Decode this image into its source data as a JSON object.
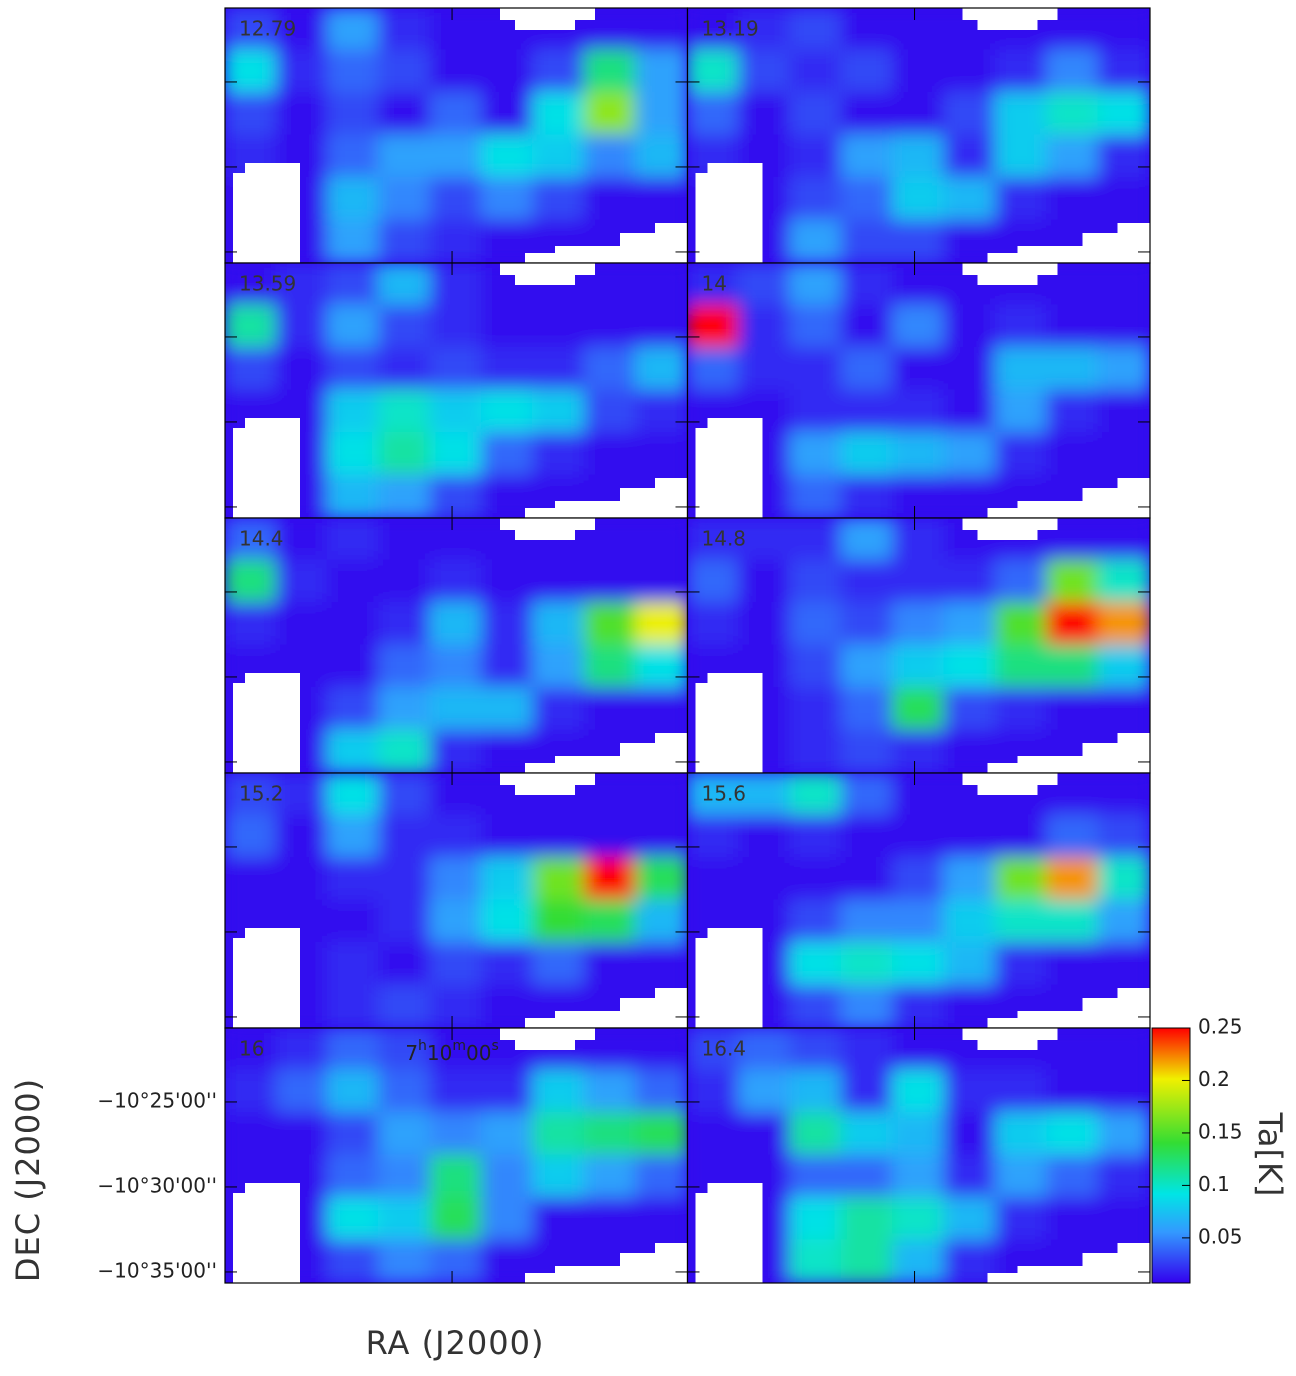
{
  "chart_data": {
    "type": "heatmap",
    "x_label": "RA (J2000)",
    "y_label": "DEC (J2000)",
    "xlim": [
      25854,
      25744
    ],
    "ylim": [
      -635.65,
      -620.65
    ],
    "xticks": [
      {
        "value": 25800,
        "label": "7h10m00s"
      }
    ],
    "yticks": [
      {
        "value": -625,
        "label": "−10°25'00''"
      },
      {
        "value": -630,
        "label": "−10°30'00''"
      },
      {
        "value": -635,
        "label": "−10°35'00''"
      }
    ],
    "colorbar": {
      "label": "Ta[K]",
      "lim": [
        0.007,
        0.25
      ],
      "ticks": [
        0.05,
        0.1,
        0.15,
        0.2,
        0.25
      ]
    },
    "panels": [
      {
        "label": "12.79",
        "values": [
          [
            0.03,
            0.01,
            0.06,
            0.02,
            0.01,
            0.01,
            0.01,
            0.01,
            0.01
          ],
          [
            0.09,
            0.02,
            0.04,
            0.03,
            0.01,
            0.01,
            0.03,
            0.12,
            0.06
          ],
          [
            0.03,
            0.01,
            0.03,
            0.01,
            0.04,
            0.01,
            0.09,
            0.17,
            0.06
          ],
          [
            0.02,
            0.01,
            0.04,
            0.06,
            0.06,
            0.09,
            0.08,
            0.05,
            0.07
          ],
          [
            0.01,
            0.01,
            0.07,
            0.05,
            0.03,
            0.05,
            0.03,
            0.01,
            0.01
          ],
          [
            0.01,
            0.01,
            0.06,
            0.03,
            0.02,
            0.01,
            0.01,
            0.01,
            0.01
          ]
        ]
      },
      {
        "label": "13.19",
        "values": [
          [
            0.01,
            0.02,
            0.03,
            0.01,
            0.01,
            0.01,
            0.01,
            0.01,
            0.01
          ],
          [
            0.1,
            0.03,
            0.02,
            0.03,
            0.01,
            0.01,
            0.02,
            0.05,
            0.02
          ],
          [
            0.04,
            0.01,
            0.03,
            0.01,
            0.01,
            0.03,
            0.08,
            0.1,
            0.09
          ],
          [
            0.02,
            0.01,
            0.02,
            0.06,
            0.07,
            0.02,
            0.08,
            0.06,
            0.02
          ],
          [
            0.01,
            0.01,
            0.03,
            0.04,
            0.08,
            0.07,
            0.02,
            0.01,
            0.01
          ],
          [
            0.01,
            0.01,
            0.06,
            0.03,
            0.03,
            0.01,
            0.01,
            0.01,
            0.01
          ]
        ]
      },
      {
        "label": "13.59",
        "values": [
          [
            0.01,
            0.02,
            0.03,
            0.07,
            0.02,
            0.01,
            0.01,
            0.01,
            0.01
          ],
          [
            0.11,
            0.02,
            0.06,
            0.03,
            0.02,
            0.01,
            0.01,
            0.01,
            0.01
          ],
          [
            0.03,
            0.01,
            0.03,
            0.02,
            0.03,
            0.02,
            0.02,
            0.04,
            0.07
          ],
          [
            0.01,
            0.01,
            0.08,
            0.1,
            0.08,
            0.09,
            0.08,
            0.03,
            0.02
          ],
          [
            0.01,
            0.01,
            0.09,
            0.11,
            0.09,
            0.04,
            0.02,
            0.01,
            0.01
          ],
          [
            0.01,
            0.01,
            0.07,
            0.06,
            0.03,
            0.01,
            0.01,
            0.01,
            0.01
          ]
        ]
      },
      {
        "label": "14",
        "values": [
          [
            0.02,
            0.03,
            0.06,
            0.02,
            0.01,
            0.01,
            0.01,
            0.01,
            0.01
          ],
          [
            0.25,
            0.02,
            0.04,
            0.01,
            0.05,
            0.01,
            0.02,
            0.01,
            0.01
          ],
          [
            0.04,
            0.02,
            0.02,
            0.04,
            0.01,
            0.01,
            0.07,
            0.07,
            0.06
          ],
          [
            0.01,
            0.01,
            0.02,
            0.02,
            0.02,
            0.01,
            0.06,
            0.02,
            0.01
          ],
          [
            0.01,
            0.01,
            0.06,
            0.08,
            0.07,
            0.06,
            0.02,
            0.01,
            0.01
          ],
          [
            0.01,
            0.01,
            0.04,
            0.02,
            0.01,
            0.01,
            0.01,
            0.01,
            0.01
          ]
        ]
      },
      {
        "label": "14.4",
        "values": [
          [
            0.04,
            0.01,
            0.02,
            0.01,
            0.01,
            0.01,
            0.01,
            0.01,
            0.01
          ],
          [
            0.12,
            0.02,
            0.01,
            0.01,
            0.02,
            0.01,
            0.01,
            0.01,
            0.01
          ],
          [
            0.02,
            0.01,
            0.01,
            0.02,
            0.07,
            0.02,
            0.07,
            0.15,
            0.2
          ],
          [
            0.01,
            0.01,
            0.01,
            0.04,
            0.05,
            0.02,
            0.06,
            0.12,
            0.09
          ],
          [
            0.01,
            0.01,
            0.03,
            0.06,
            0.07,
            0.07,
            0.02,
            0.01,
            0.01
          ],
          [
            0.01,
            0.01,
            0.08,
            0.1,
            0.02,
            0.01,
            0.01,
            0.01,
            0.01
          ]
        ]
      },
      {
        "label": "14.8",
        "values": [
          [
            0.02,
            0.02,
            0.02,
            0.06,
            0.02,
            0.01,
            0.01,
            0.01,
            0.01
          ],
          [
            0.04,
            0.01,
            0.03,
            0.02,
            0.02,
            0.02,
            0.04,
            0.16,
            0.1
          ],
          [
            0.02,
            0.01,
            0.04,
            0.03,
            0.05,
            0.06,
            0.15,
            0.25,
            0.22
          ],
          [
            0.01,
            0.01,
            0.03,
            0.06,
            0.08,
            0.09,
            0.12,
            0.12,
            0.08
          ],
          [
            0.01,
            0.01,
            0.02,
            0.04,
            0.13,
            0.03,
            0.02,
            0.01,
            0.01
          ],
          [
            0.01,
            0.01,
            0.02,
            0.03,
            0.02,
            0.01,
            0.01,
            0.01,
            0.01
          ]
        ]
      },
      {
        "label": "15.2",
        "values": [
          [
            0.03,
            0.02,
            0.09,
            0.03,
            0.01,
            0.01,
            0.01,
            0.01,
            0.01
          ],
          [
            0.04,
            0.01,
            0.06,
            0.02,
            0.02,
            0.01,
            0.01,
            0.01,
            0.01
          ],
          [
            0.01,
            0.01,
            0.02,
            0.02,
            0.05,
            0.08,
            0.16,
            0.25,
            0.13
          ],
          [
            0.01,
            0.01,
            0.01,
            0.02,
            0.06,
            0.09,
            0.14,
            0.13,
            0.07
          ],
          [
            0.01,
            0.01,
            0.02,
            0.01,
            0.03,
            0.02,
            0.04,
            0.01,
            0.01
          ],
          [
            0.01,
            0.01,
            0.02,
            0.03,
            0.02,
            0.01,
            0.01,
            0.01,
            0.01
          ]
        ]
      },
      {
        "label": "15.6",
        "values": [
          [
            0.07,
            0.07,
            0.1,
            0.04,
            0.01,
            0.01,
            0.01,
            0.01,
            0.01
          ],
          [
            0.02,
            0.01,
            0.02,
            0.01,
            0.01,
            0.01,
            0.01,
            0.04,
            0.03
          ],
          [
            0.01,
            0.01,
            0.01,
            0.01,
            0.03,
            0.06,
            0.16,
            0.22,
            0.1
          ],
          [
            0.01,
            0.01,
            0.03,
            0.05,
            0.05,
            0.08,
            0.1,
            0.1,
            0.06
          ],
          [
            0.01,
            0.01,
            0.09,
            0.1,
            0.09,
            0.07,
            0.02,
            0.01,
            0.01
          ],
          [
            0.01,
            0.01,
            0.03,
            0.05,
            0.02,
            0.01,
            0.01,
            0.01,
            0.01
          ]
        ]
      },
      {
        "label": "16",
        "values": [
          [
            0.01,
            0.02,
            0.04,
            0.03,
            0.01,
            0.01,
            0.01,
            0.01,
            0.01
          ],
          [
            0.02,
            0.04,
            0.07,
            0.04,
            0.02,
            0.02,
            0.08,
            0.06,
            0.04
          ],
          [
            0.01,
            0.01,
            0.03,
            0.06,
            0.05,
            0.06,
            0.11,
            0.12,
            0.13
          ],
          [
            0.01,
            0.01,
            0.04,
            0.05,
            0.12,
            0.05,
            0.08,
            0.06,
            0.04
          ],
          [
            0.01,
            0.01,
            0.09,
            0.08,
            0.13,
            0.05,
            0.01,
            0.01,
            0.01
          ],
          [
            0.01,
            0.01,
            0.03,
            0.05,
            0.04,
            0.01,
            0.01,
            0.01,
            0.01
          ]
        ]
      },
      {
        "label": "16.4",
        "values": [
          [
            0.03,
            0.04,
            0.03,
            0.02,
            0.01,
            0.01,
            0.01,
            0.01,
            0.01
          ],
          [
            0.02,
            0.06,
            0.07,
            0.02,
            0.09,
            0.02,
            0.02,
            0.01,
            0.01
          ],
          [
            0.01,
            0.01,
            0.11,
            0.08,
            0.07,
            0.01,
            0.08,
            0.09,
            0.06
          ],
          [
            0.01,
            0.01,
            0.04,
            0.04,
            0.06,
            0.02,
            0.06,
            0.04,
            0.02
          ],
          [
            0.01,
            0.01,
            0.09,
            0.11,
            0.1,
            0.07,
            0.02,
            0.01,
            0.01
          ],
          [
            0.01,
            0.01,
            0.1,
            0.11,
            0.07,
            0.02,
            0.01,
            0.01,
            0.01
          ]
        ]
      }
    ]
  }
}
